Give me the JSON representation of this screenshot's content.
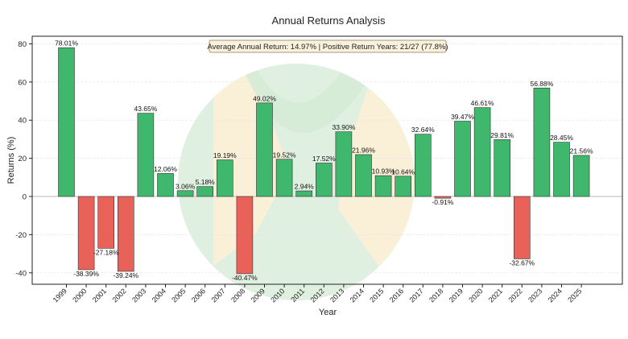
{
  "chart_data": {
    "type": "bar",
    "title": "Annual Returns Analysis",
    "xlabel": "Year",
    "ylabel": "Returns (%)",
    "ylim": [
      -46,
      84
    ],
    "yticks": [
      -40,
      -20,
      0,
      20,
      40,
      60,
      80
    ],
    "grid": "horizontal",
    "categories": [
      "1999",
      "2000",
      "2001",
      "2002",
      "2003",
      "2004",
      "2005",
      "2006",
      "2007",
      "2008",
      "2009",
      "2010",
      "2011",
      "2012",
      "2013",
      "2014",
      "2015",
      "2016",
      "2017",
      "2018",
      "2019",
      "2020",
      "2021",
      "2022",
      "2023",
      "2024",
      "2025"
    ],
    "values": [
      78.01,
      -38.39,
      -27.18,
      -39.24,
      43.65,
      12.06,
      3.06,
      5.18,
      19.19,
      -40.47,
      49.02,
      19.52,
      2.94,
      17.52,
      33.9,
      21.96,
      10.93,
      10.64,
      32.64,
      -0.91,
      39.47,
      46.61,
      29.81,
      -32.67,
      56.88,
      28.45,
      21.56
    ],
    "labels": [
      "78.01%",
      "-38.39%",
      "-27.18%",
      "-39.24%",
      "43.65%",
      "12.06%",
      "3.06%",
      "5.18%",
      "19.19%",
      "-40.47%",
      "49.02%",
      "19.52%",
      "2.94%",
      "17.52%",
      "33.90%",
      "21.96%",
      "10.93%",
      "10.64%",
      "32.64%",
      "-0.91%",
      "39.47%",
      "46.61%",
      "29.81%",
      "-32.67%",
      "56.88%",
      "28.45%",
      "21.56%"
    ],
    "annotation": "Average Annual Return: 14.97% | Positive Return Years: 21/27 (77.8%)",
    "colors": {
      "positive": "#3fb86e",
      "negative": "#e8625a",
      "watermark_circle": "#d6ebd6",
      "watermark_bands": "#fdf0d6",
      "annotation_bg": "#fbf1dc"
    }
  }
}
